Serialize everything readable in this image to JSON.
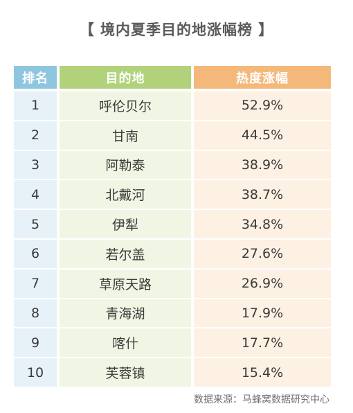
{
  "title": "【 境内夏季目的地涨幅榜 】",
  "table": {
    "headers": {
      "rank": "排名",
      "destination": "目的地",
      "growth": "热度涨幅"
    },
    "rows": [
      {
        "rank": "1",
        "destination": "呼伦贝尔",
        "growth": "52.9%"
      },
      {
        "rank": "2",
        "destination": "甘南",
        "growth": "44.5%"
      },
      {
        "rank": "3",
        "destination": "阿勒泰",
        "growth": "38.9%"
      },
      {
        "rank": "4",
        "destination": "北戴河",
        "growth": "38.7%"
      },
      {
        "rank": "5",
        "destination": "伊犁",
        "growth": "34.8%"
      },
      {
        "rank": "6",
        "destination": "若尔盖",
        "growth": "27.6%"
      },
      {
        "rank": "7",
        "destination": "草原天路",
        "growth": "26.9%"
      },
      {
        "rank": "8",
        "destination": "青海湖",
        "growth": "17.9%"
      },
      {
        "rank": "9",
        "destination": "喀什",
        "growth": "17.7%"
      },
      {
        "rank": "10",
        "destination": "芙蓉镇",
        "growth": "15.4%"
      }
    ]
  },
  "source": "数据来源：马蜂窝数据研究中心",
  "colors": {
    "rank_header": "#8fc6df",
    "destination_header": "#b1d27b",
    "growth_header": "#f4b97a"
  }
}
